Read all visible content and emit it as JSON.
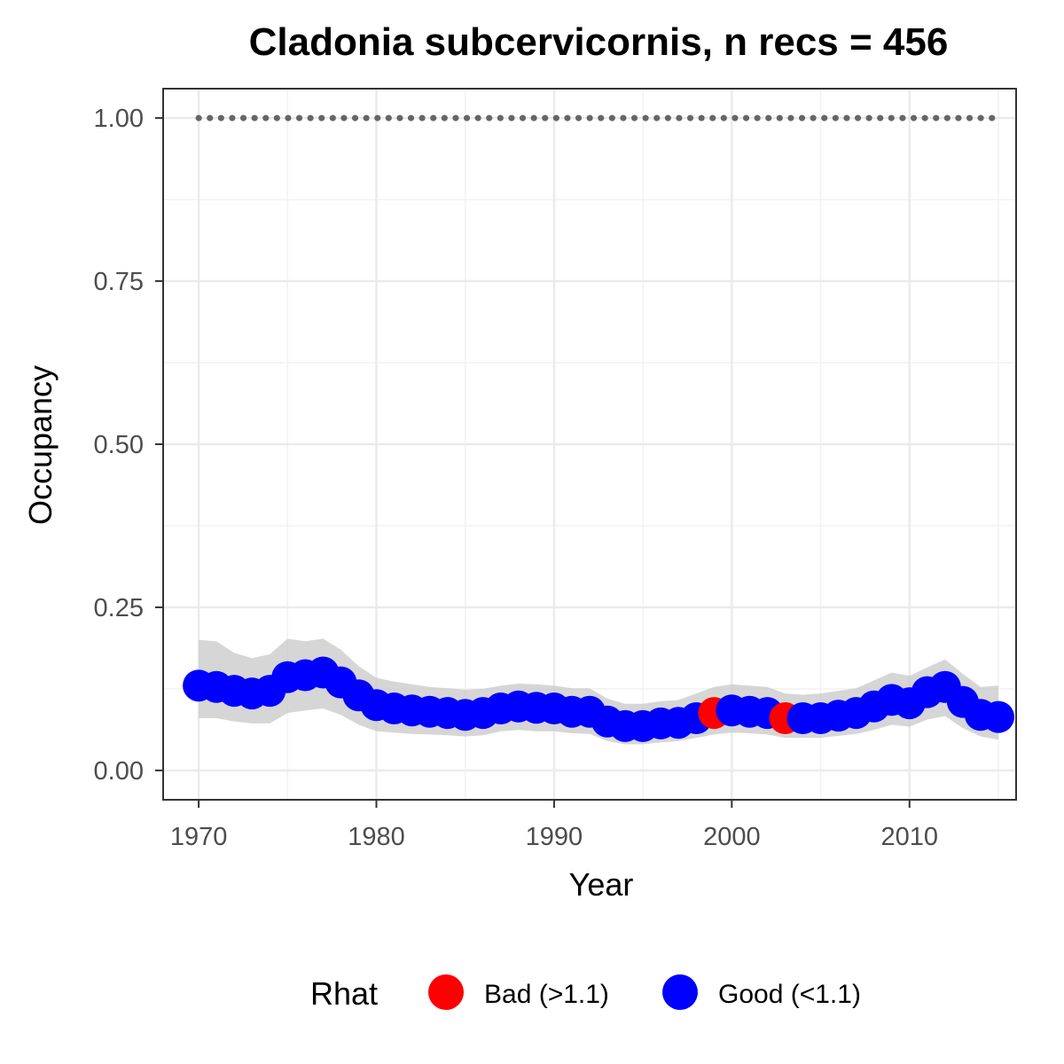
{
  "chart_data": {
    "type": "line",
    "title": "Cladonia subcervicornis, n recs = 456",
    "xlabel": "Year",
    "ylabel": "Occupancy",
    "xlim": [
      1968,
      2016
    ],
    "ylim": [
      -0.045,
      1.045
    ],
    "x_ticks": [
      1970,
      1980,
      1990,
      2000,
      2010
    ],
    "x_tick_labels": [
      "1970",
      "1980",
      "1990",
      "2000",
      "2010"
    ],
    "y_ticks": [
      0,
      0.25,
      0.5,
      0.75,
      1.0
    ],
    "y_tick_labels": [
      "0.00",
      "0.25",
      "0.50",
      "0.75",
      "1.00"
    ],
    "grid": true,
    "reference_line": {
      "y": 1.0,
      "style": "dotted",
      "color": "#666666"
    },
    "ribbon_color": "#c8c8c8",
    "legend": {
      "title": "Rhat",
      "position": "bottom",
      "entries": [
        {
          "label": "Bad (>1.1)",
          "color": "#ff0000"
        },
        {
          "label": "Good (<1.1)",
          "color": "#0000ff"
        }
      ]
    },
    "series": [
      {
        "x": [
          1970,
          1971,
          1972,
          1973,
          1974,
          1975,
          1976,
          1977,
          1978,
          1979,
          1980,
          1981,
          1982,
          1983,
          1984,
          1985,
          1986,
          1987,
          1988,
          1989,
          1990,
          1991,
          1992,
          1993,
          1994,
          1995,
          1996,
          1997,
          1998,
          1999,
          2000,
          2001,
          2002,
          2003,
          2004,
          2005,
          2006,
          2007,
          2008,
          2009,
          2010,
          2011,
          2012,
          2013,
          2014,
          2015
        ],
        "y": [
          0.13,
          0.128,
          0.122,
          0.118,
          0.122,
          0.143,
          0.146,
          0.15,
          0.135,
          0.115,
          0.1,
          0.095,
          0.092,
          0.09,
          0.088,
          0.085,
          0.088,
          0.095,
          0.098,
          0.096,
          0.095,
          0.09,
          0.09,
          0.075,
          0.068,
          0.068,
          0.072,
          0.073,
          0.08,
          0.088,
          0.092,
          0.09,
          0.088,
          0.08,
          0.08,
          0.08,
          0.084,
          0.088,
          0.098,
          0.108,
          0.103,
          0.12,
          0.128,
          0.105,
          0.085,
          0.082
        ],
        "ci_low": [
          0.08,
          0.08,
          0.075,
          0.072,
          0.072,
          0.088,
          0.092,
          0.095,
          0.085,
          0.07,
          0.06,
          0.058,
          0.056,
          0.055,
          0.054,
          0.052,
          0.054,
          0.06,
          0.062,
          0.06,
          0.06,
          0.057,
          0.056,
          0.045,
          0.04,
          0.04,
          0.043,
          0.045,
          0.05,
          0.055,
          0.058,
          0.057,
          0.055,
          0.05,
          0.05,
          0.05,
          0.053,
          0.056,
          0.062,
          0.07,
          0.067,
          0.078,
          0.083,
          0.065,
          0.052,
          0.047
        ],
        "ci_high": [
          0.2,
          0.198,
          0.18,
          0.172,
          0.178,
          0.202,
          0.198,
          0.202,
          0.185,
          0.16,
          0.142,
          0.136,
          0.132,
          0.128,
          0.126,
          0.124,
          0.125,
          0.13,
          0.133,
          0.132,
          0.13,
          0.126,
          0.126,
          0.11,
          0.102,
          0.102,
          0.106,
          0.108,
          0.118,
          0.128,
          0.132,
          0.13,
          0.128,
          0.118,
          0.116,
          0.118,
          0.122,
          0.126,
          0.138,
          0.15,
          0.145,
          0.158,
          0.17,
          0.148,
          0.128,
          0.13
        ],
        "rhat_status": [
          "good",
          "good",
          "good",
          "good",
          "good",
          "good",
          "good",
          "good",
          "good",
          "good",
          "good",
          "good",
          "good",
          "good",
          "good",
          "good",
          "good",
          "good",
          "good",
          "good",
          "good",
          "good",
          "good",
          "good",
          "good",
          "good",
          "good",
          "good",
          "good",
          "bad",
          "good",
          "good",
          "good",
          "bad",
          "good",
          "good",
          "good",
          "good",
          "good",
          "good",
          "good",
          "good",
          "good",
          "good",
          "good",
          "good"
        ]
      }
    ]
  }
}
